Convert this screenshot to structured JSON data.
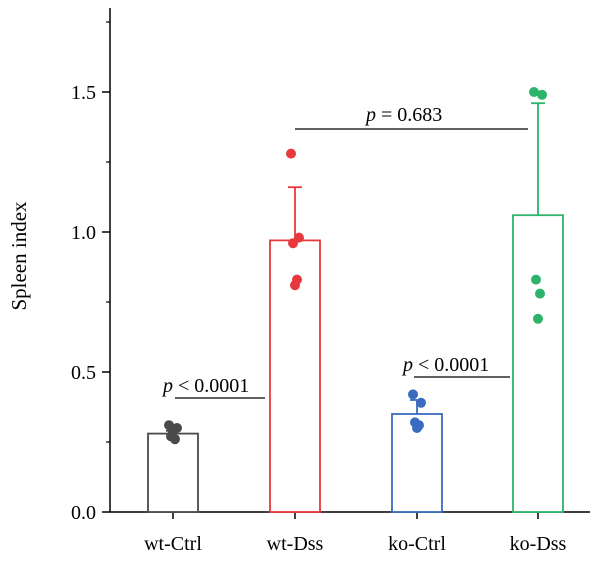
{
  "chart_data": {
    "type": "bar",
    "categories": [
      "wt-Ctrl",
      "wt-Dss",
      "ko-Ctrl",
      "ko-Dss"
    ],
    "ylabel": "Spleen index",
    "xlabel": "",
    "ylim": [
      0,
      1.8
    ],
    "yticks": [
      "0.0",
      "0.5",
      "1.0",
      "1.5"
    ],
    "ytick_values": [
      0,
      0.5,
      1.0,
      1.5
    ],
    "grid": false,
    "series": [
      {
        "values": [
          0.28,
          0.97,
          0.35,
          1.06
        ],
        "errors": [
          0.01,
          0.19,
          0.05,
          0.4
        ],
        "colors": [
          "#4a4a4a",
          "#e8383d",
          "#3a6bbf",
          "#2db36b"
        ]
      }
    ],
    "points": [
      [
        0.31,
        0.3,
        0.27,
        0.26,
        0.29
      ],
      [
        1.28,
        0.98,
        0.96,
        0.83,
        0.81
      ],
      [
        0.42,
        0.39,
        0.32,
        0.31,
        0.3
      ],
      [
        1.5,
        1.49,
        0.83,
        0.78,
        0.69
      ]
    ],
    "annotations": [
      {
        "prefix": "p",
        "text": " < 0.0001",
        "from": 0,
        "to": 0
      },
      {
        "prefix": "p",
        "text": " = 0.683",
        "from": 1,
        "to": 3
      },
      {
        "prefix": "p",
        "text": " < 0.0001",
        "from": 2,
        "to": 2
      }
    ]
  }
}
